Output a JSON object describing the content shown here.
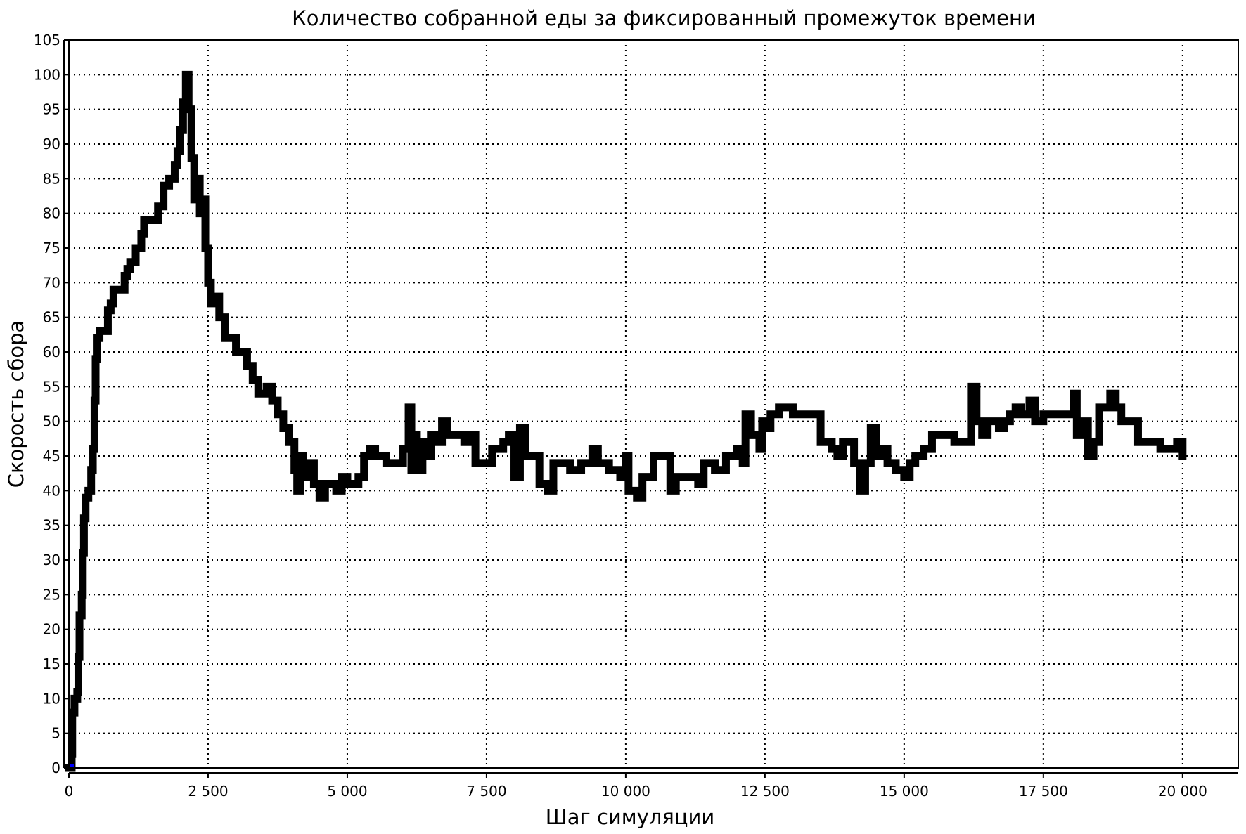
{
  "chart_data": {
    "type": "line",
    "title": "Количество собранной еды за фиксированный промежуток времени",
    "xlabel": "Шаг симуляции",
    "ylabel": "Скорость сбора",
    "xlim": [
      0,
      21000
    ],
    "ylim": [
      0,
      105
    ],
    "grid": true,
    "line_color": "#000000",
    "x_ticks": [
      0,
      2500,
      5000,
      7500,
      10000,
      12500,
      15000,
      17500,
      20000
    ],
    "x_tick_labels": [
      "0",
      "2 500",
      "5 000",
      "7 500",
      "10 000",
      "12 500",
      "15 000",
      "17 500",
      "20 000"
    ],
    "y_ticks": [
      0,
      5,
      10,
      15,
      20,
      25,
      30,
      35,
      40,
      45,
      50,
      55,
      60,
      65,
      70,
      75,
      80,
      85,
      90,
      95,
      100,
      105
    ],
    "y_tick_labels": [
      "0",
      "5",
      "10",
      "15",
      "20",
      "25",
      "30",
      "35",
      "40",
      "45",
      "50",
      "55",
      "60",
      "65",
      "70",
      "75",
      "80",
      "85",
      "90",
      "95",
      "100",
      "105"
    ],
    "series": [
      {
        "points": [
          [
            0,
            0
          ],
          [
            50,
            2
          ],
          [
            60,
            8
          ],
          [
            100,
            10
          ],
          [
            150,
            11
          ],
          [
            170,
            16
          ],
          [
            190,
            22
          ],
          [
            230,
            25
          ],
          [
            250,
            31
          ],
          [
            270,
            36
          ],
          [
            300,
            39
          ],
          [
            350,
            40
          ],
          [
            400,
            43
          ],
          [
            430,
            46
          ],
          [
            460,
            53
          ],
          [
            480,
            59
          ],
          [
            500,
            62
          ],
          [
            550,
            63
          ],
          [
            650,
            63
          ],
          [
            700,
            66
          ],
          [
            750,
            67
          ],
          [
            800,
            69
          ],
          [
            950,
            69
          ],
          [
            1000,
            71
          ],
          [
            1050,
            72
          ],
          [
            1100,
            73
          ],
          [
            1200,
            75
          ],
          [
            1300,
            77
          ],
          [
            1350,
            79
          ],
          [
            1500,
            79
          ],
          [
            1600,
            81
          ],
          [
            1700,
            84
          ],
          [
            1800,
            85
          ],
          [
            1900,
            87
          ],
          [
            1950,
            89
          ],
          [
            2000,
            92
          ],
          [
            2050,
            96
          ],
          [
            2100,
            100
          ],
          [
            2150,
            95
          ],
          [
            2200,
            88
          ],
          [
            2250,
            82
          ],
          [
            2300,
            85
          ],
          [
            2350,
            80
          ],
          [
            2400,
            82
          ],
          [
            2450,
            75
          ],
          [
            2500,
            70
          ],
          [
            2550,
            67
          ],
          [
            2650,
            68
          ],
          [
            2700,
            65
          ],
          [
            2800,
            62
          ],
          [
            2900,
            62
          ],
          [
            3000,
            60
          ],
          [
            3200,
            58
          ],
          [
            3300,
            56
          ],
          [
            3400,
            54
          ],
          [
            3550,
            55
          ],
          [
            3650,
            53
          ],
          [
            3750,
            51
          ],
          [
            3850,
            49
          ],
          [
            3950,
            47
          ],
          [
            4050,
            43
          ],
          [
            4100,
            40
          ],
          [
            4150,
            45
          ],
          [
            4200,
            42
          ],
          [
            4300,
            44
          ],
          [
            4400,
            41
          ],
          [
            4500,
            39
          ],
          [
            4600,
            41
          ],
          [
            4800,
            40
          ],
          [
            4900,
            42
          ],
          [
            5000,
            41
          ],
          [
            5200,
            42
          ],
          [
            5300,
            45
          ],
          [
            5400,
            46
          ],
          [
            5500,
            45
          ],
          [
            5700,
            44
          ],
          [
            5900,
            44
          ],
          [
            6000,
            46
          ],
          [
            6100,
            52
          ],
          [
            6150,
            43
          ],
          [
            6200,
            48
          ],
          [
            6250,
            43
          ],
          [
            6350,
            47
          ],
          [
            6450,
            45
          ],
          [
            6500,
            48
          ],
          [
            6600,
            47
          ],
          [
            6700,
            50
          ],
          [
            6800,
            48
          ],
          [
            7000,
            48
          ],
          [
            7100,
            47
          ],
          [
            7200,
            48
          ],
          [
            7300,
            44
          ],
          [
            7450,
            44
          ],
          [
            7600,
            46
          ],
          [
            7800,
            47
          ],
          [
            7900,
            48
          ],
          [
            8000,
            42
          ],
          [
            8100,
            49
          ],
          [
            8200,
            45
          ],
          [
            8350,
            45
          ],
          [
            8450,
            41
          ],
          [
            8600,
            40
          ],
          [
            8700,
            44
          ],
          [
            8900,
            44
          ],
          [
            9000,
            43
          ],
          [
            9200,
            44
          ],
          [
            9400,
            46
          ],
          [
            9500,
            44
          ],
          [
            9700,
            43
          ],
          [
            9900,
            42
          ],
          [
            10000,
            45
          ],
          [
            10050,
            40
          ],
          [
            10200,
            39
          ],
          [
            10300,
            42
          ],
          [
            10500,
            45
          ],
          [
            10700,
            45
          ],
          [
            10800,
            40
          ],
          [
            10900,
            42
          ],
          [
            11200,
            42
          ],
          [
            11300,
            41
          ],
          [
            11400,
            44
          ],
          [
            11600,
            43
          ],
          [
            11800,
            45
          ],
          [
            12000,
            46
          ],
          [
            12100,
            44
          ],
          [
            12150,
            51
          ],
          [
            12250,
            48
          ],
          [
            12400,
            46
          ],
          [
            12450,
            50
          ],
          [
            12550,
            49
          ],
          [
            12600,
            51
          ],
          [
            12750,
            52
          ],
          [
            13000,
            51
          ],
          [
            13400,
            51
          ],
          [
            13500,
            47
          ],
          [
            13700,
            46
          ],
          [
            13800,
            45
          ],
          [
            13900,
            47
          ],
          [
            14050,
            47
          ],
          [
            14100,
            44
          ],
          [
            14200,
            40
          ],
          [
            14300,
            44
          ],
          [
            14400,
            49
          ],
          [
            14500,
            45
          ],
          [
            14600,
            46
          ],
          [
            14700,
            44
          ],
          [
            14850,
            43
          ],
          [
            15000,
            42
          ],
          [
            15100,
            44
          ],
          [
            15200,
            45
          ],
          [
            15350,
            46
          ],
          [
            15500,
            48
          ],
          [
            15800,
            48
          ],
          [
            15900,
            47
          ],
          [
            16100,
            47
          ],
          [
            16200,
            55
          ],
          [
            16300,
            50
          ],
          [
            16400,
            48
          ],
          [
            16500,
            50
          ],
          [
            16700,
            49
          ],
          [
            16800,
            50
          ],
          [
            16900,
            51
          ],
          [
            17000,
            52
          ],
          [
            17100,
            51
          ],
          [
            17250,
            53
          ],
          [
            17350,
            50
          ],
          [
            17500,
            51
          ],
          [
            17900,
            51
          ],
          [
            18050,
            54
          ],
          [
            18100,
            48
          ],
          [
            18200,
            50
          ],
          [
            18300,
            45
          ],
          [
            18400,
            47
          ],
          [
            18500,
            52
          ],
          [
            18700,
            54
          ],
          [
            18800,
            52
          ],
          [
            18900,
            50
          ],
          [
            19100,
            50
          ],
          [
            19200,
            47
          ],
          [
            19500,
            47
          ],
          [
            19600,
            46
          ],
          [
            19850,
            46
          ],
          [
            19900,
            47
          ],
          [
            20000,
            45
          ]
        ]
      }
    ]
  }
}
